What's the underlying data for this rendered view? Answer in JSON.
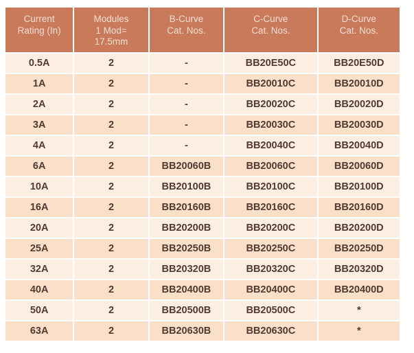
{
  "table": {
    "headers": [
      "Current\nRating (In)",
      "Modules\n1 Mod=\n17.5mm",
      "B-Curve\nCat. Nos.",
      "C-Curve\nCat. Nos.",
      "D-Curve\nCat. Nos."
    ],
    "rows": [
      [
        "0.5A",
        "2",
        "-",
        "BB20E50C",
        "BB20E50D"
      ],
      [
        "1A",
        "2",
        "-",
        "BB20010C",
        "BB20010D"
      ],
      [
        "2A",
        "2",
        "-",
        "BB20020C",
        "BB20020D"
      ],
      [
        "3A",
        "2",
        "-",
        "BB20030C",
        "BB20030D"
      ],
      [
        "4A",
        "2",
        "-",
        "BB20040C",
        "BB20040D"
      ],
      [
        "6A",
        "2",
        "BB20060B",
        "BB20060C",
        "BB20060D"
      ],
      [
        "10A",
        "2",
        "BB20100B",
        "BB20100C",
        "BB20100D"
      ],
      [
        "16A",
        "2",
        "BB20160B",
        "BB20160C",
        "BB20160D"
      ],
      [
        "20A",
        "2",
        "BB20200B",
        "BB20200C",
        "BB20200D"
      ],
      [
        "25A",
        "2",
        "BB20250B",
        "BB20250C",
        "BB20250D"
      ],
      [
        "32A",
        "2",
        "BB20320B",
        "BB20320C",
        "BB20320D"
      ],
      [
        "40A",
        "2",
        "BB20400B",
        "BB20400C",
        "BB20400D"
      ],
      [
        "50A",
        "2",
        "BB20500B",
        "BB20500C",
        "*"
      ],
      [
        "63A",
        "2",
        "BB20630B",
        "BB20630C",
        "*"
      ]
    ],
    "colors": {
      "header_bg": "#c87a5b",
      "header_text": "#f4ded4",
      "row_light": "#fcefe1",
      "row_dark": "#fadfc9",
      "body_text": "#523a31",
      "divider": "#ffffff"
    }
  }
}
